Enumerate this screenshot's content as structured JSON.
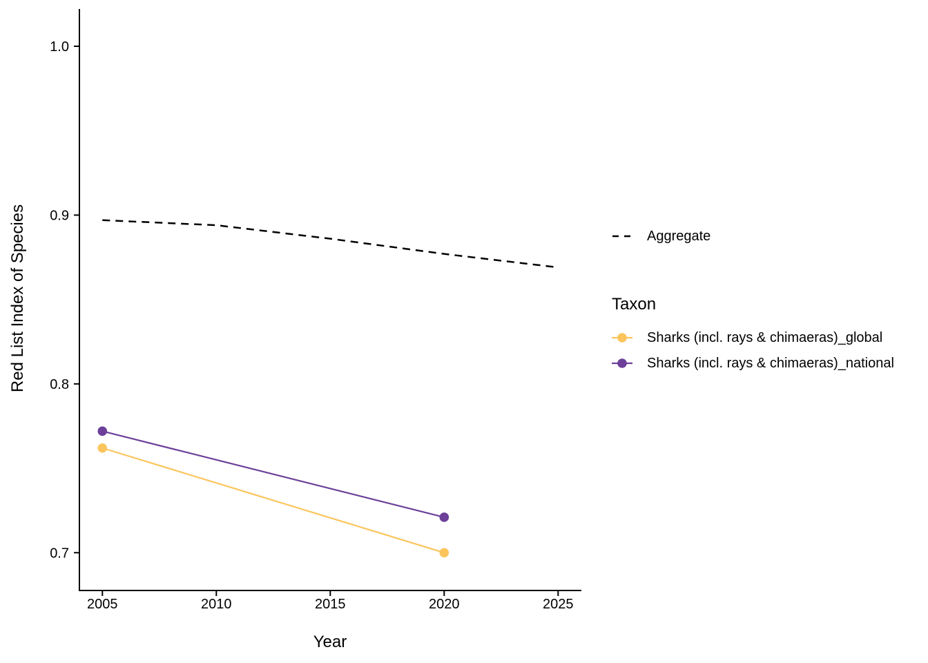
{
  "chart_data": {
    "type": "line",
    "title": "",
    "xlabel": "Year",
    "ylabel": "Red List Index of Species",
    "x_ticks": [
      2005,
      2010,
      2015,
      2020,
      2025
    ],
    "x_tick_labels": [
      "2005",
      "2010",
      "2015",
      "2020",
      "2025"
    ],
    "y_ticks": [
      0.7,
      0.8,
      0.9,
      1.0
    ],
    "y_tick_labels": [
      "0.7",
      "0.8",
      "0.9",
      "1.0"
    ],
    "xlim": [
      2004,
      2026
    ],
    "ylim": [
      0.678,
      1.022
    ],
    "grid": false,
    "legend_position": "right",
    "axis_color": "#000000",
    "series": [
      {
        "name": "Aggregate",
        "color": "#000000",
        "linestyle": "dashed",
        "points": false,
        "x": [
          2005,
          2010,
          2015,
          2020,
          2025
        ],
        "y": [
          0.897,
          0.894,
          0.886,
          0.877,
          0.869
        ]
      },
      {
        "name": "Sharks (incl. rays & chimaeras)_global",
        "color": "#FBC55D",
        "linestyle": "solid",
        "points": true,
        "x": [
          2005,
          2020
        ],
        "y": [
          0.762,
          0.7
        ]
      },
      {
        "name": "Sharks (incl. rays & chimaeras)_national",
        "color": "#6C3F99",
        "linestyle": "solid",
        "points": true,
        "x": [
          2005,
          2020
        ],
        "y": [
          0.772,
          0.721
        ]
      }
    ]
  },
  "legend": {
    "aggregate": {
      "label": "Aggregate",
      "linestyle": "dashed",
      "color": "#000000"
    },
    "taxon_title": "Taxon",
    "entries": [
      {
        "label": "Sharks (incl. rays & chimaeras)_global",
        "color": "#FBC55D"
      },
      {
        "label": "Sharks (incl. rays & chimaeras)_national",
        "color": "#6C3F99"
      }
    ]
  }
}
